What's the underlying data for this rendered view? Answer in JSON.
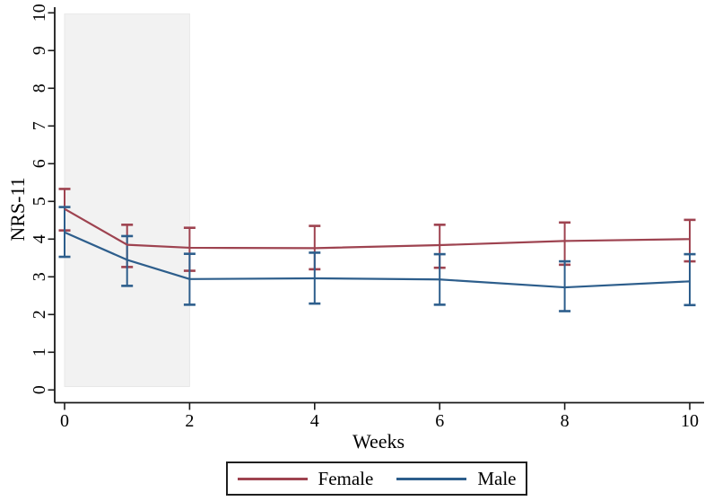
{
  "chart_data": {
    "type": "line",
    "title": "",
    "xlabel": "Weeks",
    "ylabel": "NRS-11",
    "x": [
      0,
      1,
      2,
      4,
      6,
      8,
      10
    ],
    "x_ticks": [
      0,
      2,
      4,
      6,
      8,
      10
    ],
    "y_ticks": [
      0,
      1,
      2,
      3,
      4,
      5,
      6,
      7,
      8,
      9,
      10
    ],
    "xlim": [
      0,
      10
    ],
    "ylim": [
      0,
      10
    ],
    "grid": false,
    "legend_position": "bottom-center",
    "error_bars": true,
    "shaded_region": {
      "x_start": 0,
      "x_end": 2,
      "y_start": 0.09,
      "y_end": 9.97,
      "fill": "#f2f2f2",
      "border": "#e8e8e8"
    },
    "series": [
      {
        "name": "Female",
        "color": "#9e4350",
        "values": [
          4.8,
          3.85,
          3.77,
          3.76,
          3.84,
          3.95,
          4.0
        ],
        "ci_low": [
          4.23,
          3.26,
          3.16,
          3.2,
          3.24,
          3.32,
          3.41
        ],
        "ci_high": [
          5.33,
          4.38,
          4.3,
          4.35,
          4.38,
          4.44,
          4.51
        ]
      },
      {
        "name": "Male",
        "color": "#2d5e8c",
        "values": [
          4.18,
          3.45,
          2.94,
          2.96,
          2.93,
          2.72,
          2.88
        ],
        "ci_low": [
          3.53,
          2.76,
          2.26,
          2.29,
          2.26,
          2.09,
          2.25
        ],
        "ci_high": [
          4.85,
          4.08,
          3.61,
          3.64,
          3.6,
          3.41,
          3.6
        ]
      }
    ]
  },
  "axis": {
    "color": "#1a1a1a",
    "text_color": "#000000"
  },
  "legend": {
    "border_color": "#1f1f1f"
  }
}
